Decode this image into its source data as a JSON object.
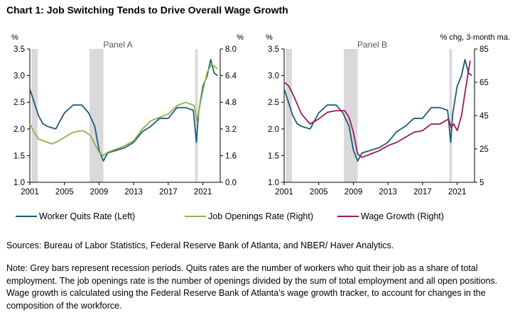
{
  "title": "Chart 1: Job Switching Tends to Drive Overall Wage Growth",
  "colors": {
    "quits": "#1f5a7a",
    "openings": "#8db34a",
    "wage": "#9b1b5a",
    "recession": "#d9d9d9"
  },
  "legend": [
    {
      "label": "Worker Quits Rate (Left)"
    },
    {
      "label": "Job Openings Rate (Right)"
    },
    {
      "label": "Wage Growth (Right)"
    }
  ],
  "sources": "Sources:  Bureau of Labor Statistics, Federal Reserve Bank of Atlanta, and NBER/ Haver Analytics.",
  "note": "Note: Grey bars represent recession periods. Quits rates are the number of workers who quit their job as a share of total employment. The job openings rate is the number of openings divided by the sum of total employment and all open positions. Wage growth is calculated using the Federal Reserve Bank of Atlanta’s wage growth tracker, to account for changes in the composition of the workforce.",
  "chart_data": [
    {
      "type": "line",
      "title": "Panel A",
      "left_unit": "%",
      "right_unit": "%",
      "xlim": [
        2001,
        2023
      ],
      "x_ticks": [
        2001,
        2005,
        2009,
        2013,
        2017,
        2021
      ],
      "ylim_left": [
        1.0,
        3.5
      ],
      "y_ticks_left": [
        "1.0",
        "1.5",
        "2.0",
        "2.5",
        "3.0",
        "3.5"
      ],
      "ylim_right": [
        0.0,
        8.0
      ],
      "y_ticks_right": [
        "0.0",
        "1.6",
        "3.2",
        "4.8",
        "6.4",
        "8.0"
      ],
      "recessions": [
        [
          2001.2,
          2001.9
        ],
        [
          2007.9,
          2009.5
        ],
        [
          2020.1,
          2020.4
        ]
      ],
      "series": [
        {
          "name": "Worker Quits Rate (Left)",
          "axis": "left",
          "color": "#1f5a7a",
          "x": [
            2001,
            2001.5,
            2002,
            2002.5,
            2003,
            2004,
            2005,
            2006,
            2007,
            2007.8,
            2008.5,
            2009,
            2009.5,
            2010,
            2011,
            2012,
            2013,
            2014,
            2015,
            2016,
            2017,
            2018,
            2019,
            2019.9,
            2020.25,
            2020.5,
            2021,
            2021.5,
            2021.9,
            2022.3,
            2022.7
          ],
          "y": [
            2.75,
            2.5,
            2.25,
            2.1,
            2.05,
            2.0,
            2.3,
            2.45,
            2.45,
            2.3,
            2.05,
            1.6,
            1.4,
            1.55,
            1.6,
            1.65,
            1.75,
            1.95,
            2.05,
            2.2,
            2.2,
            2.4,
            2.4,
            2.35,
            1.75,
            2.3,
            2.8,
            3.0,
            3.3,
            3.05,
            3.0
          ]
        },
        {
          "name": "Job Openings Rate (Right)",
          "axis": "right",
          "color": "#8db34a",
          "x": [
            2001,
            2001.5,
            2002,
            2003,
            2003.5,
            2004,
            2005,
            2006,
            2007,
            2007.5,
            2008,
            2008.5,
            2009,
            2009.5,
            2010,
            2011,
            2012,
            2013,
            2014,
            2015,
            2016,
            2017,
            2018,
            2019,
            2020,
            2020.3,
            2020.5,
            2021,
            2021.5,
            2022,
            2022.7
          ],
          "y": [
            3.5,
            3.0,
            2.6,
            2.4,
            2.3,
            2.4,
            2.7,
            3.0,
            3.1,
            3.0,
            2.8,
            2.3,
            1.8,
            1.6,
            1.8,
            2.0,
            2.2,
            2.5,
            3.2,
            3.7,
            3.9,
            4.1,
            4.6,
            4.8,
            4.6,
            3.7,
            4.2,
            5.5,
            6.6,
            7.1,
            6.8
          ]
        }
      ]
    },
    {
      "type": "line",
      "title": "Panel B",
      "left_unit": "%",
      "right_unit": "% chg, 3-month ma.",
      "xlim": [
        2001,
        2023
      ],
      "x_ticks": [
        2001,
        2005,
        2009,
        2013,
        2017,
        2021
      ],
      "ylim_left": [
        1.0,
        3.5
      ],
      "y_ticks_left": [
        "1.0",
        "1.5",
        "2.0",
        "2.5",
        "3.0",
        "3.5"
      ],
      "ylim_right": [
        5,
        85
      ],
      "y_ticks_right": [
        "5",
        "25",
        "45",
        "65",
        "85"
      ],
      "recessions": [
        [
          2001.2,
          2001.9
        ],
        [
          2007.9,
          2009.5
        ],
        [
          2020.1,
          2020.4
        ]
      ],
      "series": [
        {
          "name": "Worker Quits Rate (Left)",
          "axis": "left",
          "color": "#1f5a7a",
          "x": [
            2001,
            2001.5,
            2002,
            2002.5,
            2003,
            2004,
            2005,
            2006,
            2007,
            2007.8,
            2008.5,
            2009,
            2009.5,
            2010,
            2011,
            2012,
            2013,
            2014,
            2015,
            2016,
            2017,
            2018,
            2019,
            2019.9,
            2020.25,
            2020.5,
            2021,
            2021.5,
            2021.9,
            2022.3,
            2022.7
          ],
          "y": [
            2.75,
            2.5,
            2.25,
            2.1,
            2.05,
            2.0,
            2.3,
            2.45,
            2.45,
            2.3,
            2.05,
            1.6,
            1.4,
            1.55,
            1.6,
            1.65,
            1.75,
            1.95,
            2.05,
            2.2,
            2.2,
            2.4,
            2.4,
            2.35,
            1.75,
            2.3,
            2.8,
            3.0,
            3.3,
            3.05,
            3.0
          ]
        },
        {
          "name": "Wage Growth (Right)",
          "axis": "right",
          "color": "#9b1b5a",
          "x": [
            2001,
            2001.5,
            2002,
            2002.5,
            2003,
            2004,
            2005,
            2006,
            2007,
            2008,
            2008.5,
            2009,
            2009.5,
            2010,
            2011,
            2012,
            2013,
            2014,
            2015,
            2016,
            2017,
            2018,
            2019,
            2020,
            2020.3,
            2020.6,
            2021,
            2021.5,
            2022,
            2022.5
          ],
          "y": [
            65,
            63,
            58,
            52,
            46,
            40,
            43,
            47,
            48,
            48,
            44,
            35,
            22,
            20,
            22,
            24,
            27,
            29,
            32,
            35,
            36,
            40,
            40,
            43,
            38,
            40,
            36,
            45,
            62,
            78
          ]
        }
      ]
    }
  ]
}
